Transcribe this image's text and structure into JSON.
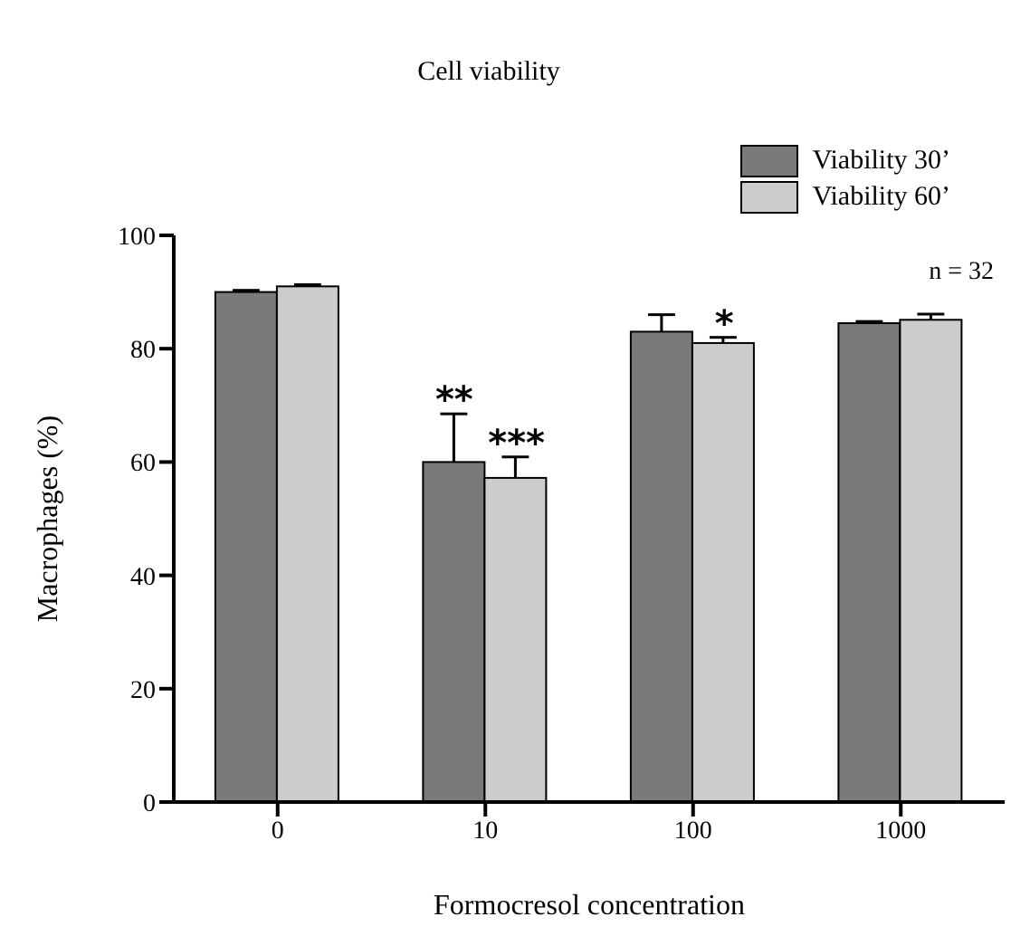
{
  "chart_data": {
    "type": "bar",
    "title": "Cell viability",
    "xlabel": "Formocresol concentration",
    "ylabel": "Macrophages (%)",
    "categories": [
      "0",
      "10",
      "100",
      "1000"
    ],
    "series": [
      {
        "name": "Viability 30’",
        "color": "#7a7a7a",
        "values": [
          90,
          60,
          83,
          84.5
        ],
        "errors": [
          0.3,
          8.5,
          3,
          0.3
        ]
      },
      {
        "name": "Viability 60’",
        "color": "#cccccc",
        "values": [
          91,
          57.2,
          81,
          85.1
        ],
        "errors": [
          0.3,
          3.7,
          1,
          1
        ]
      }
    ],
    "ylim": [
      0,
      100
    ],
    "yticks": [
      0,
      20,
      40,
      60,
      80,
      100
    ],
    "grid": false,
    "legend": "top right",
    "annotations": [
      {
        "text": "**",
        "x": "10",
        "y": 60
      },
      {
        "text": "***",
        "x": "10",
        "y": 57.2
      },
      {
        "text": "*",
        "x": "100",
        "y": 81
      },
      "n = 32"
    ]
  }
}
